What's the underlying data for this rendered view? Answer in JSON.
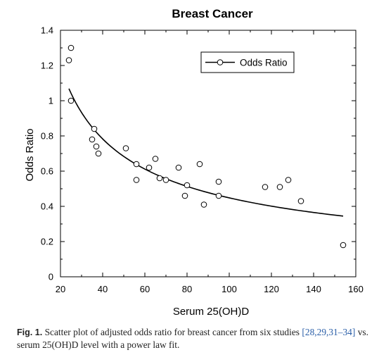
{
  "chart_data": {
    "type": "scatter",
    "title": "Breast Cancer",
    "xlabel": "Serum 25(OH)D",
    "ylabel": "Odds Ratio",
    "xlim": [
      20,
      160
    ],
    "ylim": [
      0,
      1.4
    ],
    "xticks": [
      20,
      40,
      60,
      80,
      100,
      120,
      140,
      160
    ],
    "yticks": [
      0,
      0.2,
      0.4,
      0.6,
      0.8,
      1,
      1.2,
      1.4
    ],
    "ytick_labels": [
      "0",
      "0.2",
      "0.4",
      "0.6",
      "0.8",
      "1",
      "1.2",
      "1.4"
    ],
    "legend": {
      "label": "Odds Ratio",
      "position": "top-right"
    },
    "series": [
      {
        "name": "Odds Ratio",
        "marker": "open-circle",
        "points": [
          [
            24,
            1.23
          ],
          [
            25,
            1.3
          ],
          [
            25,
            1.0
          ],
          [
            35,
            0.78
          ],
          [
            36,
            0.84
          ],
          [
            37,
            0.74
          ],
          [
            38,
            0.7
          ],
          [
            51,
            0.73
          ],
          [
            56,
            0.64
          ],
          [
            56,
            0.55
          ],
          [
            62,
            0.62
          ],
          [
            65,
            0.67
          ],
          [
            67,
            0.56
          ],
          [
            70,
            0.55
          ],
          [
            76,
            0.62
          ],
          [
            79,
            0.46
          ],
          [
            80,
            0.52
          ],
          [
            86,
            0.64
          ],
          [
            88,
            0.41
          ],
          [
            95,
            0.54
          ],
          [
            95,
            0.46
          ],
          [
            117,
            0.51
          ],
          [
            124,
            0.51
          ],
          [
            128,
            0.55
          ],
          [
            134,
            0.43
          ],
          [
            154,
            0.18
          ]
        ]
      }
    ],
    "fit": {
      "type": "power-law",
      "x_range": [
        24,
        154
      ],
      "points": [
        [
          24,
          1.09
        ],
        [
          30,
          0.94
        ],
        [
          40,
          0.78
        ],
        [
          60,
          0.6
        ],
        [
          80,
          0.5
        ],
        [
          100,
          0.44
        ],
        [
          120,
          0.4
        ],
        [
          154,
          0.36
        ]
      ]
    }
  },
  "caption": {
    "label": "Fig. 1.",
    "text_before": "Scatter plot of adjusted odds ratio for breast cancer from six studies",
    "refs": "[28,29,31–34]",
    "text_after": "vs. serum 25(OH)D level with a power law fit."
  },
  "colors": {
    "axis": "#000000",
    "refs": "#2b5fa8"
  }
}
